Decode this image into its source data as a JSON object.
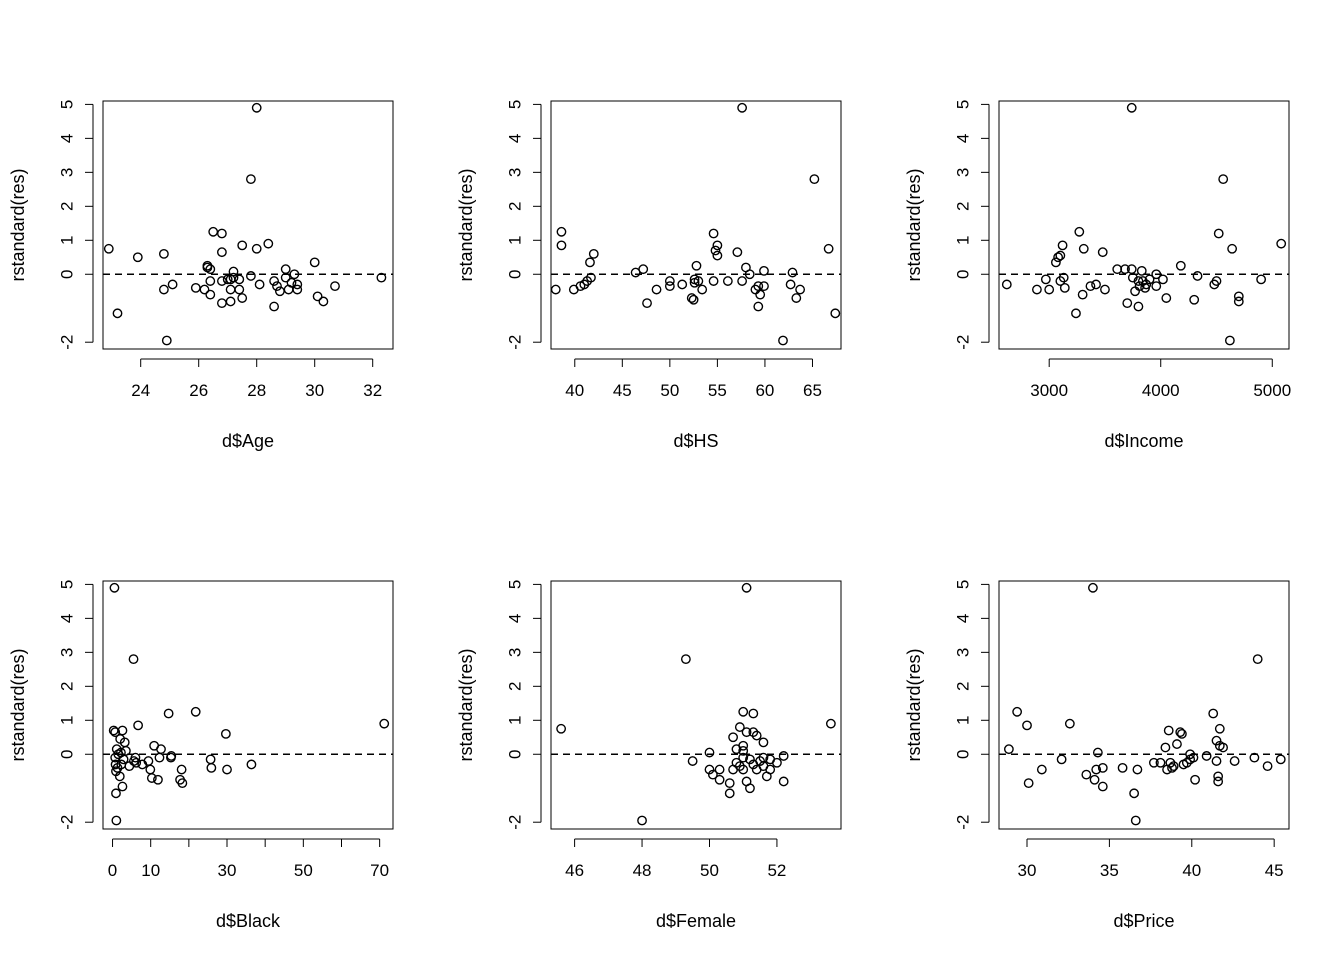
{
  "chart_data": [
    {
      "type": "scatter",
      "xlabel": "d$Age",
      "ylabel": "rstandard(res)",
      "xlim": [
        22.7,
        32.7
      ],
      "ylim": [
        -2.2,
        5.1
      ],
      "xticks": [
        24,
        26,
        28,
        30,
        32
      ],
      "yticks": [
        -2,
        0,
        1,
        2,
        3,
        4,
        5
      ],
      "reference_line": {
        "y": 0,
        "style": "dashed"
      },
      "points": [
        [
          22.9,
          0.75
        ],
        [
          23.2,
          -1.15
        ],
        [
          23.9,
          0.5
        ],
        [
          24.8,
          0.6
        ],
        [
          24.8,
          -0.45
        ],
        [
          24.9,
          -1.95
        ],
        [
          25.1,
          -0.3
        ],
        [
          25.9,
          -0.4
        ],
        [
          26.2,
          -0.45
        ],
        [
          26.3,
          0.25
        ],
        [
          26.3,
          0.2
        ],
        [
          26.4,
          0.15
        ],
        [
          26.4,
          -0.2
        ],
        [
          26.4,
          -0.6
        ],
        [
          26.5,
          1.25
        ],
        [
          26.8,
          1.2
        ],
        [
          26.8,
          0.65
        ],
        [
          26.8,
          -0.2
        ],
        [
          26.8,
          -0.85
        ],
        [
          27.0,
          -0.15
        ],
        [
          27.1,
          -0.15
        ],
        [
          27.1,
          -0.45
        ],
        [
          27.1,
          -0.8
        ],
        [
          27.2,
          0.08
        ],
        [
          27.2,
          -0.1
        ],
        [
          27.4,
          -0.15
        ],
        [
          27.4,
          -0.45
        ],
        [
          27.5,
          0.85
        ],
        [
          27.5,
          -0.7
        ],
        [
          27.8,
          -0.05
        ],
        [
          27.8,
          2.8
        ],
        [
          28.0,
          4.9
        ],
        [
          28.0,
          0.75
        ],
        [
          28.1,
          -0.3
        ],
        [
          28.4,
          0.9
        ],
        [
          28.6,
          -0.2
        ],
        [
          28.6,
          -0.95
        ],
        [
          28.7,
          -0.35
        ],
        [
          28.8,
          -0.5
        ],
        [
          29.0,
          0.15
        ],
        [
          29.0,
          -0.1
        ],
        [
          29.1,
          -0.45
        ],
        [
          29.2,
          -0.25
        ],
        [
          29.3,
          0.0
        ],
        [
          29.4,
          -0.3
        ],
        [
          29.4,
          -0.45
        ],
        [
          30.0,
          0.35
        ],
        [
          30.1,
          -0.65
        ],
        [
          30.3,
          -0.8
        ],
        [
          30.7,
          -0.35
        ],
        [
          32.3,
          -0.1
        ]
      ]
    },
    {
      "type": "scatter",
      "xlabel": "d$HS",
      "ylabel": "rstandard(res)",
      "xlim": [
        37.5,
        68
      ],
      "ylim": [
        -2.2,
        5.1
      ],
      "xticks": [
        40,
        45,
        50,
        55,
        60,
        65
      ],
      "yticks": [
        -2,
        0,
        1,
        2,
        3,
        4,
        5
      ],
      "reference_line": {
        "y": 0,
        "style": "dashed"
      },
      "points": [
        [
          38.0,
          -0.45
        ],
        [
          38.6,
          1.25
        ],
        [
          38.6,
          0.85
        ],
        [
          39.9,
          -0.45
        ],
        [
          40.6,
          -0.35
        ],
        [
          41.0,
          -0.3
        ],
        [
          41.3,
          -0.2
        ],
        [
          41.6,
          0.35
        ],
        [
          41.7,
          -0.1
        ],
        [
          42.0,
          0.6
        ],
        [
          46.4,
          0.05
        ],
        [
          47.2,
          0.15
        ],
        [
          47.6,
          -0.85
        ],
        [
          48.6,
          -0.45
        ],
        [
          50.0,
          -0.35
        ],
        [
          50.0,
          -0.2
        ],
        [
          51.3,
          -0.3
        ],
        [
          52.3,
          -0.7
        ],
        [
          52.5,
          -0.75
        ],
        [
          52.6,
          -0.15
        ],
        [
          52.6,
          -0.25
        ],
        [
          52.8,
          0.25
        ],
        [
          53.0,
          -0.2
        ],
        [
          53.4,
          -0.45
        ],
        [
          54.6,
          1.2
        ],
        [
          54.6,
          -0.2
        ],
        [
          55.0,
          0.85
        ],
        [
          55.0,
          0.55
        ],
        [
          54.8,
          0.7
        ],
        [
          56.1,
          -0.2
        ],
        [
          57.1,
          0.65
        ],
        [
          57.6,
          4.9
        ],
        [
          57.6,
          -0.2
        ],
        [
          58.0,
          0.2
        ],
        [
          58.4,
          0.0
        ],
        [
          59.0,
          -0.45
        ],
        [
          59.3,
          -0.35
        ],
        [
          59.3,
          -0.95
        ],
        [
          59.5,
          -0.6
        ],
        [
          59.9,
          0.1
        ],
        [
          59.9,
          -0.35
        ],
        [
          61.9,
          -1.95
        ],
        [
          62.7,
          -0.3
        ],
        [
          62.9,
          0.05
        ],
        [
          63.3,
          -0.7
        ],
        [
          63.7,
          -0.45
        ],
        [
          65.2,
          2.8
        ],
        [
          66.7,
          0.75
        ],
        [
          67.4,
          -1.15
        ]
      ]
    },
    {
      "type": "scatter",
      "xlabel": "d$Income",
      "ylabel": "rstandard(res)",
      "xlim": [
        2550,
        5150
      ],
      "ylim": [
        -2.2,
        5.1
      ],
      "xticks": [
        3000,
        4000,
        5000
      ],
      "yticks": [
        -2,
        0,
        1,
        2,
        3,
        4,
        5
      ],
      "reference_line": {
        "y": 0,
        "style": "dashed"
      },
      "points": [
        [
          2620,
          -0.3
        ],
        [
          2890,
          -0.45
        ],
        [
          2970,
          -0.15
        ],
        [
          3000,
          -0.45
        ],
        [
          3060,
          0.35
        ],
        [
          3080,
          0.5
        ],
        [
          3100,
          -0.2
        ],
        [
          3100,
          0.55
        ],
        [
          3120,
          0.85
        ],
        [
          3130,
          -0.1
        ],
        [
          3140,
          -0.4
        ],
        [
          3240,
          -1.15
        ],
        [
          3270,
          1.25
        ],
        [
          3300,
          -0.6
        ],
        [
          3310,
          0.75
        ],
        [
          3370,
          -0.35
        ],
        [
          3420,
          -0.3
        ],
        [
          3480,
          0.65
        ],
        [
          3500,
          -0.45
        ],
        [
          3610,
          0.15
        ],
        [
          3680,
          0.15
        ],
        [
          3700,
          -0.85
        ],
        [
          3740,
          4.9
        ],
        [
          3740,
          0.15
        ],
        [
          3750,
          -0.1
        ],
        [
          3770,
          -0.5
        ],
        [
          3800,
          -0.2
        ],
        [
          3800,
          -0.95
        ],
        [
          3810,
          -0.35
        ],
        [
          3830,
          0.1
        ],
        [
          3840,
          -0.2
        ],
        [
          3860,
          -0.4
        ],
        [
          3870,
          -0.3
        ],
        [
          3900,
          -0.15
        ],
        [
          3960,
          0.0
        ],
        [
          3960,
          -0.35
        ],
        [
          4020,
          -0.15
        ],
        [
          4050,
          -0.7
        ],
        [
          4180,
          0.25
        ],
        [
          4300,
          -0.75
        ],
        [
          4330,
          -0.05
        ],
        [
          4480,
          -0.3
        ],
        [
          4500,
          -0.2
        ],
        [
          4520,
          1.2
        ],
        [
          4560,
          2.8
        ],
        [
          4620,
          -1.95
        ],
        [
          4640,
          0.75
        ],
        [
          4700,
          -0.65
        ],
        [
          4700,
          -0.8
        ],
        [
          4900,
          -0.15
        ],
        [
          5080,
          0.9
        ]
      ]
    },
    {
      "type": "scatter",
      "xlabel": "d$Black",
      "ylabel": "rstandard(res)",
      "xlim": [
        -2.5,
        73.5
      ],
      "ylim": [
        -2.2,
        5.1
      ],
      "xticks": [
        0,
        10,
        20,
        30,
        40,
        50,
        60,
        70
      ],
      "xtick_labels": [
        "0",
        "10",
        "",
        "30",
        "",
        "50",
        "",
        "70"
      ],
      "yticks": [
        -2,
        0,
        1,
        2,
        3,
        4,
        5
      ],
      "reference_line": {
        "y": 0,
        "style": "dashed"
      },
      "points": [
        [
          0.3,
          0.7
        ],
        [
          0.5,
          4.9
        ],
        [
          0.7,
          0.65
        ],
        [
          0.7,
          -0.1
        ],
        [
          0.8,
          -0.3
        ],
        [
          0.9,
          -1.15
        ],
        [
          0.9,
          -0.5
        ],
        [
          1.0,
          -1.95
        ],
        [
          1.1,
          0.15
        ],
        [
          1.3,
          -0.4
        ],
        [
          1.5,
          0.0
        ],
        [
          1.9,
          -0.65
        ],
        [
          2.0,
          0.45
        ],
        [
          2.2,
          0.05
        ],
        [
          2.3,
          -0.3
        ],
        [
          2.6,
          -0.95
        ],
        [
          2.6,
          0.7
        ],
        [
          2.9,
          -0.15
        ],
        [
          3.2,
          0.35
        ],
        [
          3.5,
          0.1
        ],
        [
          4.4,
          -0.35
        ],
        [
          5.5,
          2.8
        ],
        [
          5.6,
          -0.2
        ],
        [
          6.0,
          -0.1
        ],
        [
          6.2,
          -0.25
        ],
        [
          6.7,
          0.85
        ],
        [
          7.8,
          -0.3
        ],
        [
          9.4,
          -0.2
        ],
        [
          9.9,
          -0.45
        ],
        [
          10.3,
          -0.7
        ],
        [
          10.9,
          0.25
        ],
        [
          11.9,
          -0.75
        ],
        [
          12.3,
          -0.1
        ],
        [
          12.7,
          0.15
        ],
        [
          14.7,
          1.2
        ],
        [
          15.3,
          -0.1
        ],
        [
          15.4,
          -0.05
        ],
        [
          17.7,
          -0.75
        ],
        [
          18.1,
          -0.45
        ],
        [
          18.3,
          -0.85
        ],
        [
          21.8,
          1.25
        ],
        [
          25.7,
          -0.15
        ],
        [
          25.9,
          -0.4
        ],
        [
          29.7,
          0.6
        ],
        [
          30.0,
          -0.45
        ],
        [
          36.4,
          -0.3
        ],
        [
          71.2,
          0.9
        ]
      ]
    },
    {
      "type": "scatter",
      "xlabel": "d$Female",
      "ylabel": "rstandard(res)",
      "xlim": [
        45.3,
        53.9
      ],
      "ylim": [
        -2.2,
        5.1
      ],
      "xticks": [
        46,
        48,
        50,
        52
      ],
      "yticks": [
        -2,
        0,
        1,
        2,
        3,
        4,
        5
      ],
      "reference_line": {
        "y": 0,
        "style": "dashed"
      },
      "points": [
        [
          45.6,
          0.75
        ],
        [
          48.0,
          -1.95
        ],
        [
          49.3,
          2.8
        ],
        [
          49.5,
          -0.2
        ],
        [
          50.0,
          0.05
        ],
        [
          50.0,
          -0.45
        ],
        [
          50.1,
          -0.6
        ],
        [
          50.3,
          -0.45
        ],
        [
          50.3,
          -0.75
        ],
        [
          50.6,
          -0.85
        ],
        [
          50.6,
          -1.15
        ],
        [
          50.7,
          -0.45
        ],
        [
          50.7,
          0.5
        ],
        [
          50.8,
          0.15
        ],
        [
          50.8,
          -0.25
        ],
        [
          50.9,
          0.8
        ],
        [
          50.9,
          -0.35
        ],
        [
          51.0,
          0.25
        ],
        [
          51.0,
          0.1
        ],
        [
          51.0,
          -0.1
        ],
        [
          51.0,
          -0.45
        ],
        [
          51.0,
          1.25
        ],
        [
          51.1,
          4.9
        ],
        [
          51.1,
          0.65
        ],
        [
          51.1,
          -0.8
        ],
        [
          51.2,
          -0.15
        ],
        [
          51.2,
          -1.0
        ],
        [
          51.3,
          1.2
        ],
        [
          51.3,
          -0.3
        ],
        [
          51.3,
          0.65
        ],
        [
          51.4,
          0.55
        ],
        [
          51.4,
          -0.45
        ],
        [
          51.5,
          -0.2
        ],
        [
          51.6,
          -0.35
        ],
        [
          51.6,
          -0.1
        ],
        [
          51.6,
          0.35
        ],
        [
          51.7,
          -0.65
        ],
        [
          51.8,
          -0.15
        ],
        [
          51.8,
          -0.45
        ],
        [
          52.0,
          -0.25
        ],
        [
          52.2,
          -0.05
        ],
        [
          52.2,
          -0.8
        ],
        [
          53.6,
          0.9
        ]
      ]
    },
    {
      "type": "scatter",
      "xlabel": "d$Price",
      "ylabel": "rstandard(res)",
      "xlim": [
        28.3,
        45.9
      ],
      "ylim": [
        -2.2,
        5.1
      ],
      "xticks": [
        30,
        35,
        40,
        45
      ],
      "yticks": [
        -2,
        0,
        1,
        2,
        3,
        4,
        5
      ],
      "reference_line": {
        "y": 0,
        "style": "dashed"
      },
      "points": [
        [
          28.9,
          0.15
        ],
        [
          29.4,
          1.25
        ],
        [
          30.0,
          0.85
        ],
        [
          30.1,
          -0.85
        ],
        [
          30.9,
          -0.45
        ],
        [
          32.1,
          -0.15
        ],
        [
          32.6,
          0.9
        ],
        [
          33.6,
          -0.6
        ],
        [
          34.0,
          4.9
        ],
        [
          34.1,
          -0.75
        ],
        [
          34.2,
          -0.45
        ],
        [
          34.3,
          0.05
        ],
        [
          34.6,
          -0.4
        ],
        [
          34.6,
          -0.95
        ],
        [
          35.8,
          -0.4
        ],
        [
          36.5,
          -1.15
        ],
        [
          36.6,
          -1.95
        ],
        [
          36.7,
          -0.45
        ],
        [
          37.7,
          -0.25
        ],
        [
          38.1,
          -0.25
        ],
        [
          38.4,
          0.2
        ],
        [
          38.5,
          -0.45
        ],
        [
          38.6,
          0.7
        ],
        [
          38.7,
          -0.25
        ],
        [
          38.8,
          -0.4
        ],
        [
          38.9,
          -0.35
        ],
        [
          39.1,
          0.3
        ],
        [
          39.3,
          0.65
        ],
        [
          39.4,
          0.6
        ],
        [
          39.5,
          -0.3
        ],
        [
          39.7,
          -0.25
        ],
        [
          39.9,
          -0.15
        ],
        [
          39.9,
          0.0
        ],
        [
          40.1,
          -0.1
        ],
        [
          40.2,
          -0.75
        ],
        [
          40.9,
          -0.05
        ],
        [
          41.3,
          1.2
        ],
        [
          41.5,
          0.4
        ],
        [
          41.5,
          -0.2
        ],
        [
          41.6,
          -0.65
        ],
        [
          41.6,
          -0.8
        ],
        [
          41.7,
          0.75
        ],
        [
          41.7,
          0.25
        ],
        [
          41.9,
          0.2
        ],
        [
          42.6,
          -0.2
        ],
        [
          43.8,
          -0.1
        ],
        [
          44.0,
          2.8
        ],
        [
          44.6,
          -0.35
        ],
        [
          45.4,
          -0.15
        ]
      ]
    }
  ]
}
